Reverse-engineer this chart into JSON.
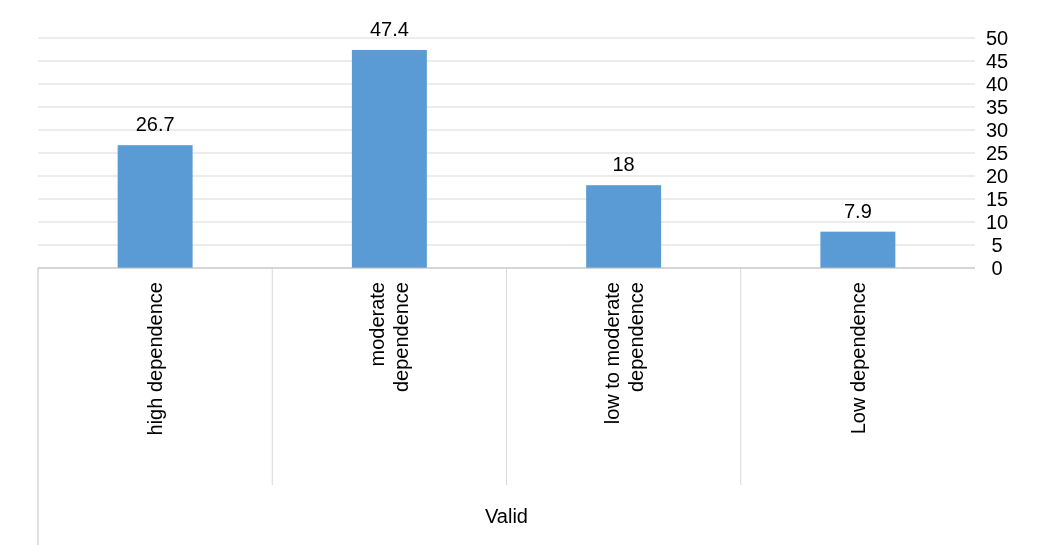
{
  "chart_data": {
    "type": "bar",
    "xlabel": "Valid",
    "categories": [
      "high dependence",
      "moderate dependence",
      "low to moderate dependence",
      "Low dependence"
    ],
    "values": [
      26.7,
      47.4,
      18,
      7.9
    ],
    "color": "#5b9bd5",
    "data_labels": true,
    "ylim": [
      0,
      50
    ],
    "yticks": [
      0,
      5,
      10,
      15,
      20,
      25,
      30,
      35,
      40,
      45,
      50
    ],
    "grid": "y"
  }
}
